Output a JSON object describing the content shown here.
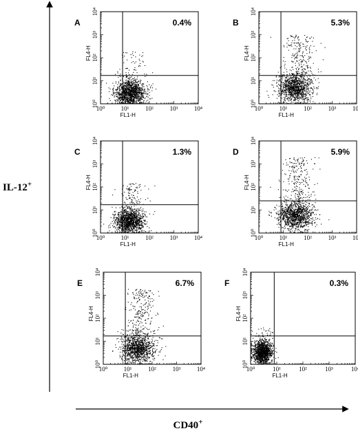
{
  "figure": {
    "y_axis_label": "IL-12",
    "y_axis_sup": "+",
    "x_axis_label": "CD40",
    "x_axis_sup": "+"
  },
  "chart_data": [
    {
      "type": "scatter",
      "panel": "A",
      "xlabel": "FL1-H",
      "ylabel": "FL4-H",
      "xlim": [
        1,
        10000
      ],
      "ylim": [
        1,
        10000
      ],
      "xscale": "log",
      "yscale": "log",
      "xticks": [
        "10⁰",
        "10¹",
        "10²",
        "10³",
        "10⁴"
      ],
      "yticks": [
        "10⁰",
        "10¹",
        "10²",
        "10³",
        "10⁴"
      ],
      "gate": {
        "x": 8,
        "y": 17
      },
      "annotation": "0.4%",
      "population": {
        "center": [
          16,
          3
        ],
        "spread": [
          0.32,
          0.3
        ],
        "upper_tail_fraction": 0.03,
        "upper_tail_max": 200
      }
    },
    {
      "type": "scatter",
      "panel": "B",
      "xlabel": "FL1-H",
      "ylabel": "FL4-H",
      "xlim": [
        1,
        10000
      ],
      "ylim": [
        1,
        10000
      ],
      "xscale": "log",
      "yscale": "log",
      "xticks": [
        "10⁰",
        "10¹",
        "10²",
        "10³",
        "10⁴"
      ],
      "yticks": [
        "10⁰",
        "10¹",
        "10²",
        "10³",
        "10⁴"
      ],
      "gate": {
        "x": 8,
        "y": 17
      },
      "annotation": "5.3%",
      "population": {
        "center": [
          30,
          5
        ],
        "spread": [
          0.35,
          0.33
        ],
        "upper_tail_fraction": 0.15,
        "upper_tail_max": 1000
      }
    },
    {
      "type": "scatter",
      "panel": "C",
      "xlabel": "FL1-H",
      "ylabel": "FL4-H",
      "xlim": [
        1,
        10000
      ],
      "ylim": [
        1,
        10000
      ],
      "xscale": "log",
      "yscale": "log",
      "xticks": [
        "10⁰",
        "10¹",
        "10²",
        "10³",
        "10⁴"
      ],
      "yticks": [
        "10⁰",
        "10¹",
        "10²",
        "10³",
        "10⁴"
      ],
      "gate": {
        "x": 8,
        "y": 17
      },
      "annotation": "1.3%",
      "population": {
        "center": [
          15,
          3.5
        ],
        "spread": [
          0.3,
          0.28
        ],
        "upper_tail_fraction": 0.06,
        "upper_tail_max": 150
      }
    },
    {
      "type": "scatter",
      "panel": "D",
      "xlabel": "FL1-H",
      "ylabel": "FL4-H",
      "xlim": [
        1,
        10000
      ],
      "ylim": [
        1,
        10000
      ],
      "xscale": "log",
      "yscale": "log",
      "xticks": [
        "10⁰",
        "10¹",
        "10²",
        "10³",
        "10⁴"
      ],
      "yticks": [
        "10⁰",
        "10¹",
        "10²",
        "10³",
        "10⁴"
      ],
      "gate": {
        "x": 8,
        "y": 25
      },
      "annotation": "5.9%",
      "population": {
        "center": [
          30,
          6
        ],
        "spread": [
          0.36,
          0.33
        ],
        "upper_tail_fraction": 0.16,
        "upper_tail_max": 2000
      }
    },
    {
      "type": "scatter",
      "panel": "E",
      "xlabel": "FL1-H",
      "ylabel": "FL4-H",
      "xlim": [
        1,
        10000
      ],
      "ylim": [
        1,
        10000
      ],
      "xscale": "log",
      "yscale": "log",
      "xticks": [
        "10⁰",
        "10¹",
        "10²",
        "10³",
        "10⁴"
      ],
      "yticks": [
        "10⁰",
        "10¹",
        "10²",
        "10³",
        "10⁴"
      ],
      "gate": {
        "x": 8,
        "y": 17
      },
      "annotation": "6.7%",
      "population": {
        "center": [
          25,
          5
        ],
        "spread": [
          0.35,
          0.33
        ],
        "upper_tail_fraction": 0.17,
        "upper_tail_max": 2000
      }
    },
    {
      "type": "scatter",
      "panel": "F",
      "xlabel": "FL1-H",
      "ylabel": "FL4-H",
      "xlim": [
        1,
        10000
      ],
      "ylim": [
        1,
        10000
      ],
      "xscale": "log",
      "yscale": "log",
      "xticks": [
        "10⁰",
        "10¹",
        "10²",
        "10³",
        "10⁴"
      ],
      "yticks": [
        "10⁰",
        "10¹",
        "10²",
        "10³",
        "10⁴"
      ],
      "gate": {
        "x": 8,
        "y": 17
      },
      "annotation": "0.3%",
      "population": {
        "center": [
          2.8,
          3.5
        ],
        "spread": [
          0.18,
          0.25
        ],
        "upper_tail_fraction": 0.02,
        "upper_tail_max": 40
      }
    }
  ]
}
